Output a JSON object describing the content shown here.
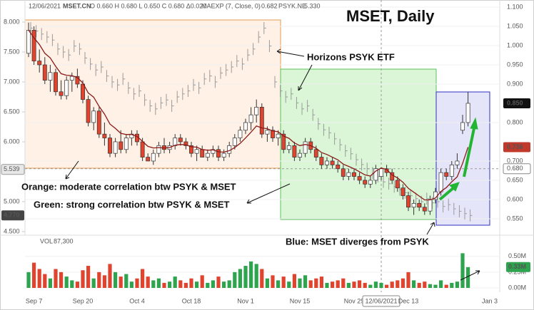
{
  "chart_data": [
    {
      "type": "candlestick",
      "title": "MSET, Daily",
      "annotations": [
        "Horizons PSYK ETF",
        "Orange: moderate correlation btw PSYK & MSET",
        "Green: strong correlation btw PSYK & MSET",
        "Blue: MSET diverges from PSYK"
      ],
      "legend": {
        "ohlc": "O 0.660 H 0.680 L 0.650 C 0.680 Δ0.020",
        "ma": "0.682",
        "psyk": "5.330"
      },
      "categories": [
        null,
        "Sep 7",
        null,
        null,
        null,
        null,
        null,
        null,
        null,
        null,
        "Sep 20",
        null,
        null,
        null,
        null,
        null,
        null,
        null,
        null,
        null,
        "Oct 4",
        null,
        null,
        null,
        null,
        null,
        null,
        null,
        null,
        null,
        "Oct 18",
        null,
        null,
        null,
        null,
        null,
        null,
        null,
        null,
        null,
        "Nov 1",
        null,
        null,
        null,
        null,
        null,
        null,
        null,
        null,
        null,
        "Nov 15",
        null,
        null,
        null,
        null,
        null,
        null,
        null,
        null,
        null,
        "Nov 29",
        null,
        null,
        null,
        null,
        "12/06/2021",
        null,
        null,
        null,
        null,
        "Dec 13",
        null,
        null,
        null,
        null,
        null,
        null,
        null,
        null,
        null,
        null,
        null,
        null,
        null,
        null,
        "Jan 3"
      ],
      "highlight_category": 65,
      "ylim": [
        4.464,
        8.25
      ],
      "yticks": [
        {
          "value": 8,
          "label": "8.000"
        },
        {
          "value": 7.5,
          "label": "7.500"
        },
        {
          "value": 7,
          "label": "7.000"
        },
        {
          "value": 6.5,
          "label": "6.500"
        },
        {
          "value": 6,
          "label": "6.000"
        },
        {
          "value": 5,
          "label": "5.000"
        },
        {
          "value": 4.5,
          "label": "4.500"
        }
      ],
      "y2lim": [
        0.511,
        1.1
      ],
      "y2ticks": [
        {
          "value": 1.1,
          "label": "1.100"
        },
        {
          "value": 1.05,
          "label": "1.050"
        },
        {
          "value": 1,
          "label": "1.000"
        },
        {
          "value": 0.95,
          "label": "0.950"
        },
        {
          "value": 0.9,
          "label": "0.900"
        },
        {
          "value": 0.8,
          "label": "0.800"
        },
        {
          "value": 0.7,
          "label": "0.700"
        },
        {
          "value": 0.65,
          "label": "0.650"
        },
        {
          "value": 0.6,
          "label": "0.600"
        },
        {
          "value": 0.55,
          "label": "0.550"
        }
      ],
      "grid": true,
      "crosshair": {
        "y": {
          "value": 5.539,
          "label": "5.539"
        },
        "y2": {
          "value": 0.68,
          "label": "0.680"
        }
      },
      "last_markers": [
        {
          "axis": "y2",
          "value": 0.85,
          "label": "0.850",
          "color": "#111111"
        },
        {
          "axis": "y2",
          "value": 0.736,
          "label": "0.736",
          "color": "#c0392b"
        },
        {
          "axis": "y",
          "value": 4.77,
          "label": "4.770",
          "color": "#444444"
        }
      ],
      "series": [
        {
          "name": "MSET.CN",
          "type": "candlestick",
          "axis": "y2",
          "up_color": "#ffffff",
          "down_color": "#e0442f",
          "edge_color": "#333333",
          "open": [
            0.98,
            1.04,
            0.96,
            0.95,
            0.91,
            0.93,
            0.88,
            0.87,
            0.91,
            0.92,
            0.9,
            0.86,
            0.8,
            0.83,
            0.77,
            0.76,
            0.72,
            0.75,
            0.73,
            0.76,
            0.77,
            0.75,
            0.71,
            0.7,
            0.72,
            0.74,
            0.73,
            0.74,
            0.76,
            0.75,
            0.74,
            0.72,
            0.73,
            0.71,
            0.72,
            0.73,
            0.71,
            0.72,
            0.74,
            0.76,
            0.78,
            0.8,
            0.82,
            0.84,
            0.77,
            0.78,
            0.76,
            0.77,
            0.73,
            0.74,
            0.71,
            0.72,
            0.75,
            0.73,
            0.71,
            0.69,
            0.7,
            0.69,
            0.68,
            0.66,
            0.67,
            0.66,
            0.65,
            0.64,
            0.65,
            0.66,
            0.68,
            0.67,
            0.65,
            0.63,
            0.61,
            0.58,
            0.59,
            0.58,
            0.57,
            0.6,
            0.62,
            0.67,
            0.66,
            0.69,
            0.78,
            0.8,
            null,
            null,
            null,
            null
          ],
          "high": [
            1.06,
            1.05,
            0.99,
            0.97,
            0.95,
            0.94,
            0.91,
            0.92,
            0.93,
            0.94,
            0.91,
            0.87,
            0.84,
            0.84,
            0.8,
            0.77,
            0.76,
            0.78,
            0.77,
            0.78,
            0.78,
            0.76,
            0.72,
            0.73,
            0.75,
            0.76,
            0.75,
            0.77,
            0.77,
            0.76,
            0.75,
            0.74,
            0.74,
            0.73,
            0.74,
            0.74,
            0.73,
            0.75,
            0.77,
            0.79,
            0.81,
            0.84,
            0.86,
            0.85,
            0.79,
            0.79,
            0.78,
            0.78,
            0.75,
            0.75,
            0.73,
            0.76,
            0.76,
            0.74,
            0.72,
            0.71,
            0.71,
            0.7,
            0.69,
            0.68,
            0.68,
            0.67,
            0.66,
            0.66,
            0.69,
            0.68,
            0.69,
            0.68,
            0.66,
            0.64,
            0.62,
            0.6,
            0.6,
            0.59,
            0.61,
            0.63,
            0.68,
            0.68,
            0.7,
            0.72,
            0.82,
            0.88,
            null,
            null,
            null,
            null
          ],
          "low": [
            0.97,
            0.95,
            0.93,
            0.9,
            0.88,
            0.87,
            0.86,
            0.86,
            0.88,
            0.89,
            0.85,
            0.79,
            0.78,
            0.76,
            0.74,
            0.71,
            0.71,
            0.72,
            0.72,
            0.74,
            0.74,
            0.7,
            0.7,
            0.69,
            0.71,
            0.72,
            0.72,
            0.73,
            0.74,
            0.73,
            0.71,
            0.7,
            0.71,
            0.7,
            0.71,
            0.7,
            0.7,
            0.71,
            0.73,
            0.75,
            0.77,
            0.78,
            0.8,
            0.76,
            0.75,
            0.75,
            0.74,
            0.72,
            0.72,
            0.7,
            0.7,
            0.71,
            0.72,
            0.7,
            0.68,
            0.68,
            0.68,
            0.67,
            0.65,
            0.65,
            0.65,
            0.64,
            0.63,
            0.63,
            0.64,
            0.65,
            0.66,
            0.64,
            0.62,
            0.6,
            0.57,
            0.56,
            0.57,
            0.56,
            0.56,
            0.59,
            0.61,
            0.65,
            0.65,
            0.68,
            0.77,
            0.79,
            null,
            null,
            null,
            null
          ],
          "close": [
            1.04,
            0.96,
            0.95,
            0.91,
            0.93,
            0.88,
            0.87,
            0.91,
            0.92,
            0.9,
            0.86,
            0.8,
            0.83,
            0.77,
            0.76,
            0.72,
            0.75,
            0.73,
            0.76,
            0.77,
            0.75,
            0.71,
            0.7,
            0.72,
            0.74,
            0.73,
            0.74,
            0.76,
            0.75,
            0.74,
            0.72,
            0.73,
            0.71,
            0.72,
            0.73,
            0.71,
            0.72,
            0.74,
            0.76,
            0.78,
            0.8,
            0.82,
            0.84,
            0.77,
            0.78,
            0.76,
            0.77,
            0.73,
            0.74,
            0.71,
            0.72,
            0.75,
            0.73,
            0.71,
            0.69,
            0.7,
            0.69,
            0.68,
            0.66,
            0.67,
            0.66,
            0.65,
            0.64,
            0.65,
            0.68,
            0.68,
            0.67,
            0.65,
            0.63,
            0.61,
            0.58,
            0.59,
            0.58,
            0.57,
            0.6,
            0.62,
            0.67,
            0.66,
            0.69,
            0.7,
            0.8,
            0.85,
            null,
            null,
            null,
            null
          ]
        },
        {
          "name": "PSYK.NE",
          "type": "ohlc",
          "axis": "y",
          "color": "#9a9a9a",
          "high": [
            8.0,
            7.95,
            7.9,
            7.85,
            7.8,
            7.65,
            7.6,
            7.55,
            7.7,
            7.65,
            7.5,
            7.4,
            7.3,
            7.35,
            7.2,
            7.1,
            7.05,
            7.15,
            7.0,
            6.9,
            6.95,
            6.8,
            6.7,
            6.65,
            6.75,
            6.8,
            6.7,
            6.85,
            6.9,
            6.95,
            7.05,
            7.0,
            7.15,
            7.2,
            7.1,
            7.25,
            7.3,
            7.35,
            7.45,
            7.4,
            7.55,
            7.65,
            7.85,
            8.0,
            7.7,
            7.1,
            6.95,
            6.85,
            6.9,
            6.75,
            6.65,
            6.7,
            6.55,
            6.4,
            6.3,
            6.25,
            6.15,
            6.05,
            5.95,
            5.9,
            5.8,
            5.72,
            5.65,
            5.58,
            5.52,
            5.43,
            5.4,
            5.35,
            5.3,
            5.25,
            5.2,
            5.15,
            5.1,
            5.15,
            5.08,
            5.1,
            5.02,
            5.05,
            4.98,
            4.94,
            4.9,
            4.87,
            null,
            null,
            null,
            null
          ],
          "low": [
            7.8,
            7.75,
            7.7,
            7.65,
            7.6,
            7.45,
            7.4,
            7.35,
            7.5,
            7.45,
            7.3,
            7.2,
            7.1,
            7.15,
            7.0,
            6.9,
            6.85,
            6.95,
            6.8,
            6.7,
            6.75,
            6.6,
            6.5,
            6.45,
            6.55,
            6.6,
            6.5,
            6.65,
            6.7,
            6.75,
            6.85,
            6.8,
            6.95,
            7.0,
            6.9,
            7.05,
            7.1,
            7.15,
            7.25,
            7.2,
            7.35,
            7.45,
            7.65,
            7.8,
            7.5,
            6.9,
            6.75,
            6.65,
            6.7,
            6.55,
            6.45,
            6.5,
            6.35,
            6.2,
            6.1,
            6.05,
            5.95,
            5.85,
            5.75,
            5.7,
            5.6,
            5.52,
            5.45,
            5.38,
            5.32,
            5.23,
            5.2,
            5.15,
            5.1,
            5.05,
            5.0,
            4.95,
            4.9,
            4.95,
            4.88,
            4.9,
            4.82,
            4.85,
            4.78,
            4.74,
            4.7,
            4.67,
            null,
            null,
            null,
            null
          ],
          "close": [
            7.9,
            7.85,
            7.8,
            7.75,
            7.7,
            7.55,
            7.5,
            7.45,
            7.6,
            7.55,
            7.4,
            7.3,
            7.2,
            7.25,
            7.1,
            7.0,
            6.95,
            7.05,
            6.9,
            6.8,
            6.85,
            6.7,
            6.6,
            6.55,
            6.65,
            6.7,
            6.6,
            6.75,
            6.8,
            6.85,
            6.95,
            6.9,
            7.05,
            7.1,
            7.0,
            7.15,
            7.2,
            7.25,
            7.35,
            7.3,
            7.45,
            7.55,
            7.75,
            7.9,
            7.6,
            7.0,
            6.85,
            6.75,
            6.8,
            6.65,
            6.55,
            6.6,
            6.45,
            6.3,
            6.2,
            6.15,
            6.05,
            5.95,
            5.85,
            5.8,
            5.7,
            5.62,
            5.55,
            5.48,
            5.42,
            5.33,
            5.3,
            5.25,
            5.2,
            5.15,
            5.1,
            5.05,
            5.0,
            5.05,
            4.98,
            5.0,
            4.92,
            4.95,
            4.88,
            4.84,
            4.8,
            4.77,
            null,
            null,
            null,
            null
          ]
        },
        {
          "name": "MAEXP (7, Close, 0)",
          "type": "line",
          "axis": "y2",
          "color": "#8b1a1a",
          "values": [
            1.04,
            1.02,
            1.003,
            0.98,
            0.968,
            0.946,
            0.927,
            0.923,
            0.922,
            0.917,
            0.903,
            0.877,
            0.866,
            0.842,
            0.822,
            0.796,
            0.785,
            0.772,
            0.769,
            0.769,
            0.764,
            0.751,
            0.738,
            0.734,
            0.735,
            0.734,
            0.735,
            0.741,
            0.743,
            0.742,
            0.737,
            0.736,
            0.73,
            0.728,
            0.729,
            0.724,
            0.723,
            0.727,
            0.735,
            0.746,
            0.76,
            0.775,
            0.791,
            0.786,
            0.784,
            0.778,
            0.776,
            0.765,
            0.759,
            0.747,
            0.74,
            0.743,
            0.74,
            0.733,
            0.722,
            0.717,
            0.71,
            0.703,
            0.692,
            0.686,
            0.68,
            0.672,
            0.664,
            0.661,
            0.674,
            0.682,
            0.678,
            0.664,
            0.656,
            0.645,
            0.629,
            0.619,
            0.609,
            0.599,
            0.599,
            0.604,
            0.621,
            0.631,
            0.646,
            0.659,
            0.694,
            0.736,
            null,
            null,
            null,
            null
          ]
        }
      ]
    },
    {
      "type": "bar",
      "title": "VOL",
      "value_label": "87,300",
      "up_color": "#2ea44f",
      "down_color": "#e0442f",
      "ylim": [
        0,
        0.78
      ],
      "yticks": [
        {
          "value": 0,
          "label": "0.00M"
        },
        {
          "value": 0.25,
          "label": "0.25M"
        },
        {
          "value": 0.5,
          "label": "0.50M"
        }
      ],
      "last_marker": {
        "value": 0.33,
        "label": "0.33M",
        "color": "#2ea44f"
      },
      "values": [
        0.25,
        0.4,
        0.3,
        0.22,
        0.15,
        0.3,
        0.25,
        0.18,
        0.12,
        0.1,
        0.28,
        0.35,
        0.15,
        0.25,
        0.2,
        0.38,
        0.25,
        0.18,
        0.22,
        0.1,
        0.15,
        0.3,
        0.18,
        0.12,
        0.15,
        0.08,
        0.1,
        0.18,
        0.12,
        0.08,
        0.15,
        0.1,
        0.2,
        0.08,
        0.12,
        0.18,
        0.1,
        0.12,
        0.25,
        0.3,
        0.35,
        0.42,
        0.38,
        0.3,
        0.15,
        0.2,
        0.12,
        0.18,
        0.1,
        0.22,
        0.15,
        0.2,
        0.12,
        0.15,
        0.18,
        0.08,
        0.1,
        0.12,
        0.15,
        0.08,
        0.1,
        0.12,
        0.08,
        0.05,
        0.1,
        0.08,
        0.05,
        0.1,
        0.12,
        0.15,
        0.25,
        0.12,
        0.08,
        0.1,
        0.06,
        0.05,
        0.12,
        0.05,
        0.08,
        0.1,
        0.55,
        0.33,
        null,
        null,
        null,
        null
      ]
    }
  ]
}
